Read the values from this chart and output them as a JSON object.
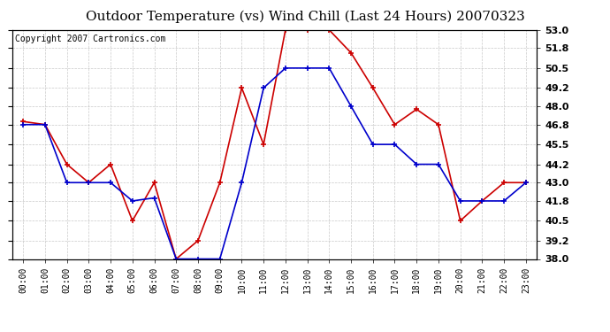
{
  "title": "Outdoor Temperature (vs) Wind Chill (Last 24 Hours) 20070323",
  "copyright_text": "Copyright 2007 Cartronics.com",
  "hours": [
    "00:00",
    "01:00",
    "02:00",
    "03:00",
    "04:00",
    "05:00",
    "06:00",
    "07:00",
    "08:00",
    "09:00",
    "10:00",
    "11:00",
    "12:00",
    "13:00",
    "14:00",
    "15:00",
    "16:00",
    "17:00",
    "18:00",
    "19:00",
    "20:00",
    "21:00",
    "22:00",
    "23:00"
  ],
  "temp": [
    47.0,
    46.8,
    44.2,
    43.0,
    44.2,
    40.5,
    43.0,
    38.0,
    39.2,
    43.0,
    49.2,
    45.5,
    53.0,
    53.0,
    53.0,
    51.5,
    49.2,
    46.8,
    47.8,
    46.8,
    40.5,
    41.8,
    43.0,
    43.0
  ],
  "windchill": [
    46.8,
    46.8,
    43.0,
    43.0,
    43.0,
    41.8,
    42.0,
    38.0,
    38.0,
    38.0,
    43.0,
    49.2,
    50.5,
    50.5,
    50.5,
    48.0,
    45.5,
    45.5,
    44.2,
    44.2,
    41.8,
    41.8,
    41.8,
    43.0
  ],
  "temp_color": "#cc0000",
  "windchill_color": "#0000cc",
  "ylim_min": 38.0,
  "ylim_max": 53.0,
  "ytick_values": [
    38.0,
    39.2,
    40.5,
    41.8,
    43.0,
    44.2,
    45.5,
    46.8,
    48.0,
    49.2,
    50.5,
    51.8,
    53.0
  ],
  "background_color": "#ffffff",
  "grid_color": "#bbbbbb",
  "title_fontsize": 11,
  "copyright_fontsize": 7,
  "marker": "+",
  "marker_size": 5,
  "linewidth": 1.2
}
